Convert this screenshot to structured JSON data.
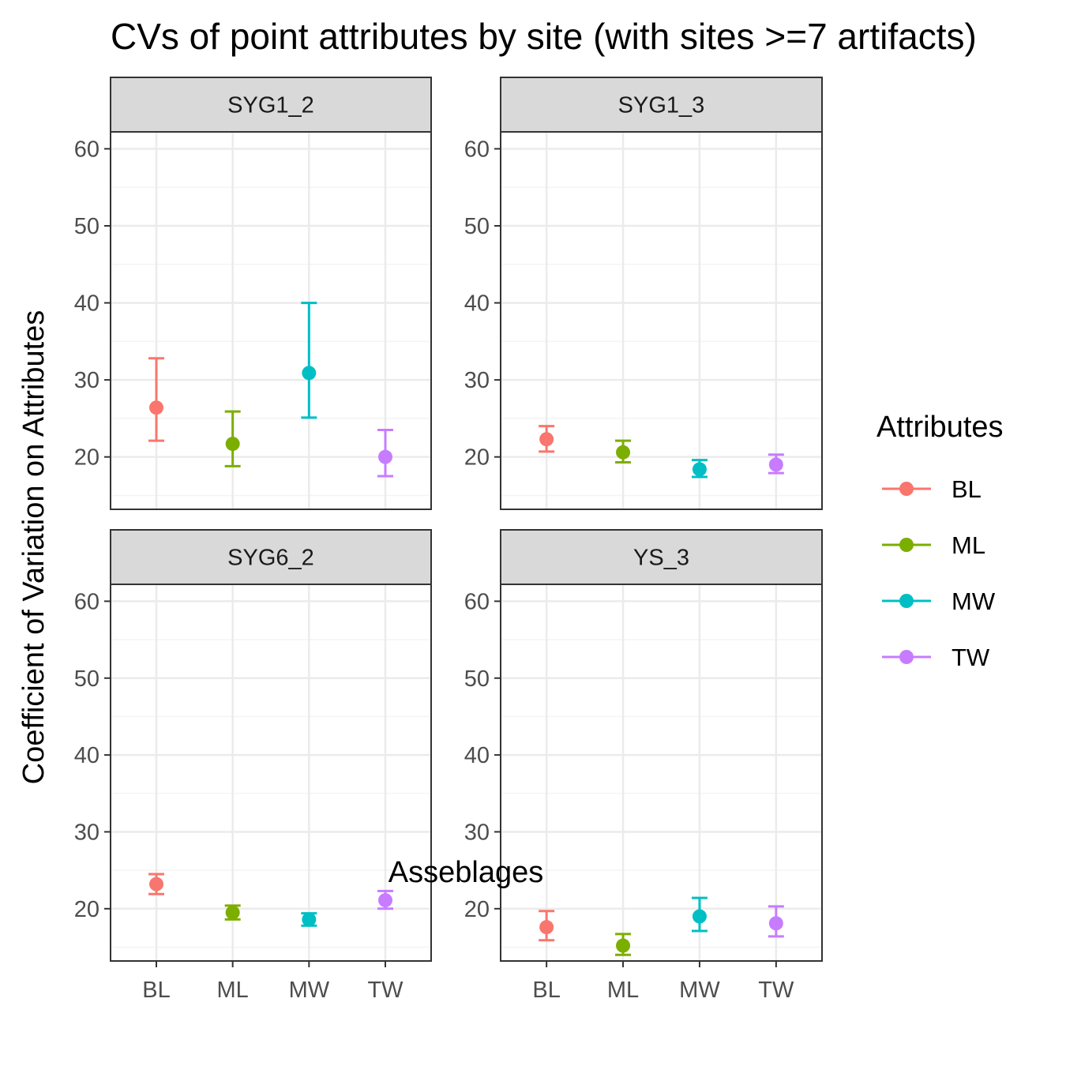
{
  "chart_data": {
    "type": "scatter",
    "title": "CVs of point attributes by site (with sites >=7 artifacts)",
    "xlabel": "Asseblages",
    "ylabel": "Coefficient of Variation on Attributes",
    "categories": [
      "BL",
      "ML",
      "MW",
      "TW"
    ],
    "ylim": [
      13.2,
      62.2
    ],
    "yticks": [
      20,
      30,
      40,
      50,
      60
    ],
    "grid": true,
    "legend": {
      "title": "Attributes",
      "placement": "right",
      "entries": [
        "BL",
        "ML",
        "MW",
        "TW"
      ]
    },
    "colors": {
      "BL": "#F8766D",
      "ML": "#7CAE00",
      "MW": "#00BFC4",
      "TW": "#C77CFF",
      "strip_fill": "#D9D9D9",
      "grid_major": "#EBEBEB",
      "panel_border": "#333333"
    },
    "panels": [
      {
        "name": "SYG1_2",
        "series": [
          {
            "name": "BL",
            "value": 26.4,
            "lower": 22.1,
            "upper": 32.8
          },
          {
            "name": "ML",
            "value": 21.7,
            "lower": 18.8,
            "upper": 25.9
          },
          {
            "name": "MW",
            "value": 30.9,
            "lower": 25.1,
            "upper": 40.0
          },
          {
            "name": "TW",
            "value": 20.0,
            "lower": 17.5,
            "upper": 23.5
          }
        ]
      },
      {
        "name": "SYG1_3",
        "series": [
          {
            "name": "BL",
            "value": 22.3,
            "lower": 20.7,
            "upper": 24.0
          },
          {
            "name": "ML",
            "value": 20.6,
            "lower": 19.3,
            "upper": 22.1
          },
          {
            "name": "MW",
            "value": 18.4,
            "lower": 17.4,
            "upper": 19.6
          },
          {
            "name": "TW",
            "value": 19.0,
            "lower": 17.9,
            "upper": 20.3
          }
        ]
      },
      {
        "name": "SYG6_2",
        "series": [
          {
            "name": "BL",
            "value": 23.2,
            "lower": 21.9,
            "upper": 24.5
          },
          {
            "name": "ML",
            "value": 19.5,
            "lower": 18.6,
            "upper": 20.4
          },
          {
            "name": "MW",
            "value": 18.6,
            "lower": 17.8,
            "upper": 19.4
          },
          {
            "name": "TW",
            "value": 21.1,
            "lower": 20.0,
            "upper": 22.3
          }
        ]
      },
      {
        "name": "YS_3",
        "series": [
          {
            "name": "BL",
            "value": 17.6,
            "lower": 15.9,
            "upper": 19.7
          },
          {
            "name": "ML",
            "value": 15.2,
            "lower": 14.0,
            "upper": 16.7
          },
          {
            "name": "MW",
            "value": 19.0,
            "lower": 17.1,
            "upper": 21.4
          },
          {
            "name": "TW",
            "value": 18.1,
            "lower": 16.4,
            "upper": 20.3
          }
        ]
      }
    ]
  }
}
